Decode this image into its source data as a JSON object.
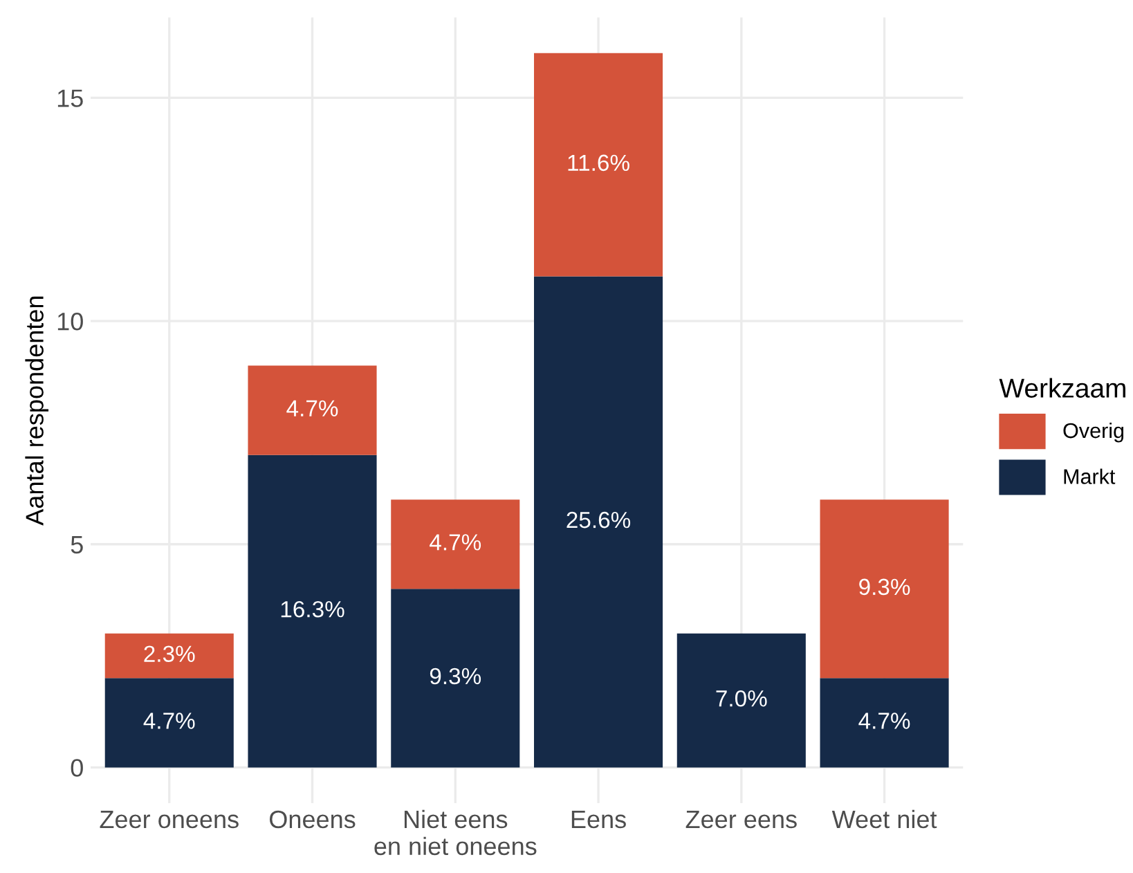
{
  "chart_data": {
    "type": "bar",
    "stacked": true,
    "ylabel": "Aantal respondenten",
    "legend_title": "Werkzaam",
    "legend": "right",
    "grid": true,
    "categories": [
      "Zeer oneens",
      "Oneens",
      "Niet eens\nen niet oneens",
      "Eens",
      "Zeer eens",
      "Weet niet"
    ],
    "ylim": [
      -0.8,
      16.8
    ],
    "yticks": [
      0,
      5,
      10,
      15
    ],
    "series": [
      {
        "name": "Markt",
        "color": "#152a48",
        "values": [
          2,
          7,
          4,
          11,
          3,
          2
        ]
      },
      {
        "name": "Overig",
        "color": "#d4533a",
        "values": [
          1,
          2,
          2,
          5,
          0,
          4
        ]
      }
    ],
    "annotations": [
      "4.7%",
      "16.3%",
      "9.3%",
      "25.6%",
      "7.0%",
      "4.7%",
      "2.3%",
      "4.7%",
      "4.7%",
      "11.6%",
      "9.3%"
    ]
  }
}
